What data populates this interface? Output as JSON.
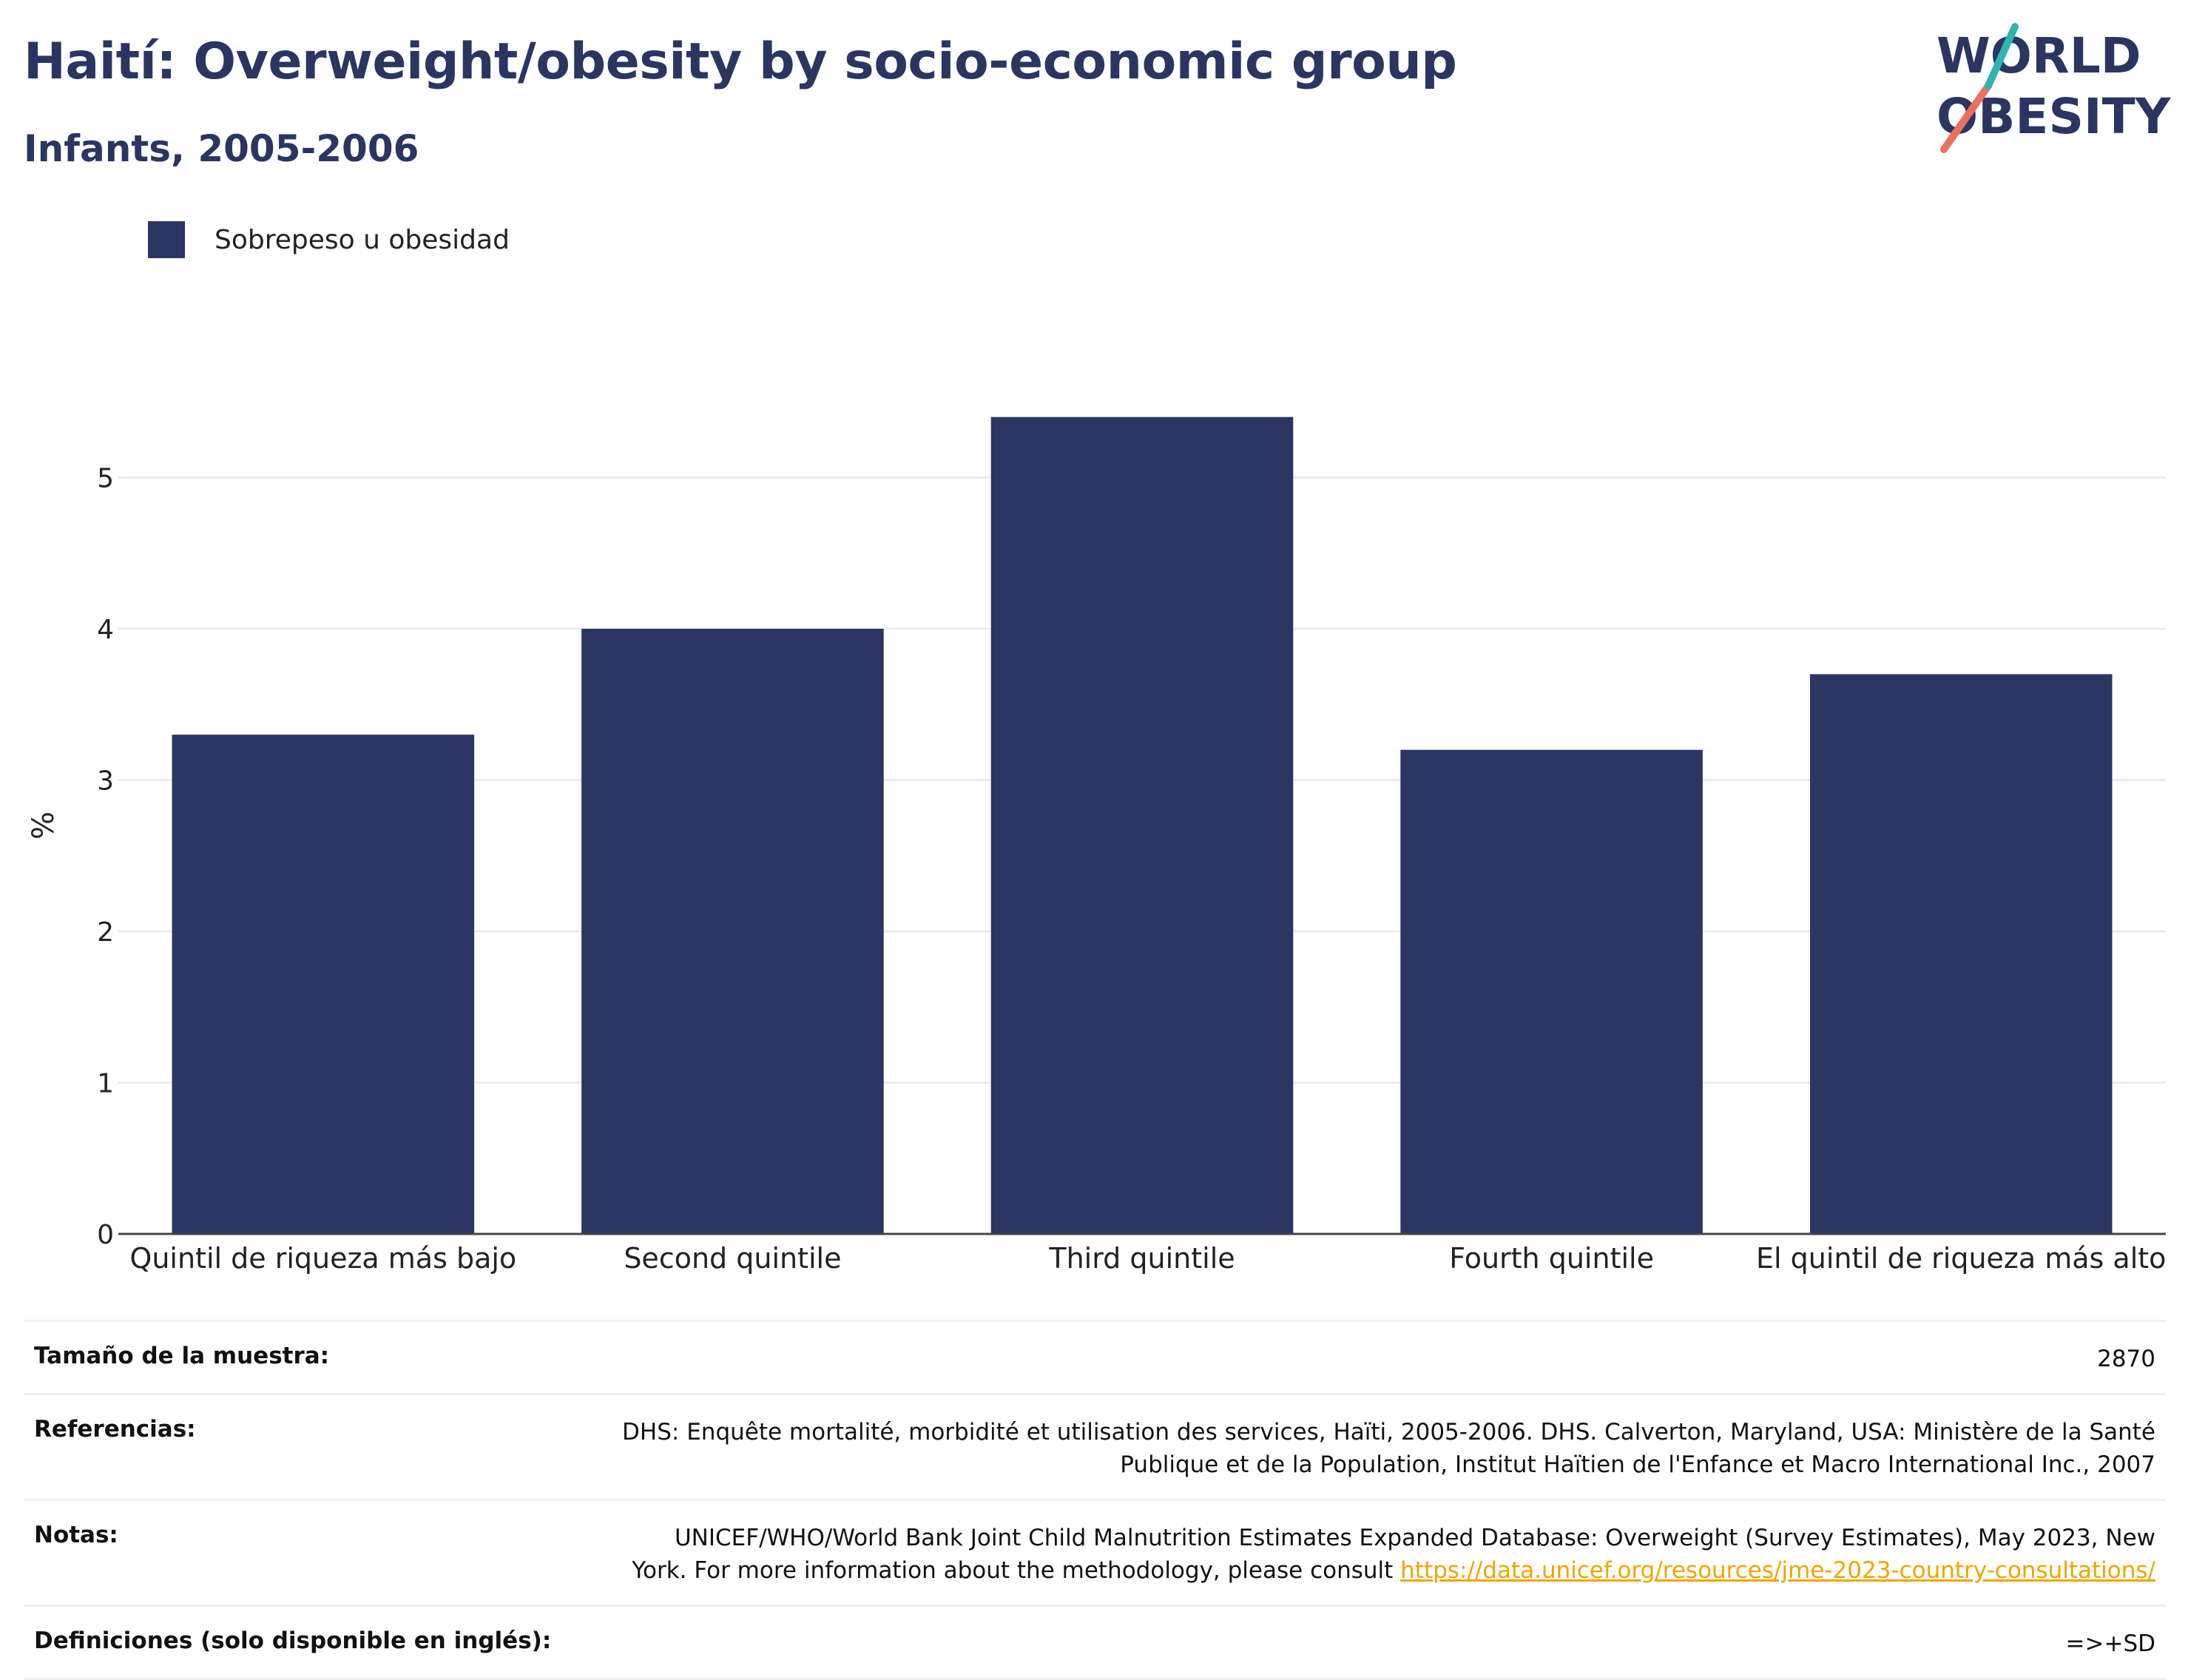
{
  "header": {
    "title": "Haití: Overweight/obesity by socio-economic group",
    "subtitle": "Infants, 2005-2006"
  },
  "logo": {
    "line1": "WORLD",
    "line2": "OBESITY"
  },
  "legend": {
    "label": "Sobrepeso u obesidad",
    "color": "#2b3663"
  },
  "chart_data": {
    "type": "bar",
    "categories": [
      "Quintil de riqueza más bajo",
      "Second quintile",
      "Third quintile",
      "Fourth quintile",
      "El quintil de riqueza más alto"
    ],
    "series": [
      {
        "name": "Sobrepeso u obesidad",
        "values": [
          3.3,
          4.0,
          5.4,
          3.2,
          3.7
        ],
        "color": "#2b3663"
      }
    ],
    "ylabel": "%",
    "ylim": [
      0,
      5.8
    ],
    "yticks": [
      0,
      1,
      2,
      3,
      4,
      5
    ],
    "grid": true,
    "legend_position": "top-left"
  },
  "info": {
    "sample_size_label": "Tamaño de la muestra:",
    "sample_size_value": "2870",
    "references_label": "Referencias:",
    "references_value_1": "DHS: Enquête mortalité, morbidité et utilisation des services, Haïti, 2005-2006. DHS. Calverton, Maryland, USA: Ministère de la Santé",
    "references_value_2": "Publique et de la Population, Institut Haïtien de l'Enfance et Macro International Inc., 2007",
    "notes_label": "Notas:",
    "notes_value_1": "UNICEF/WHO/World Bank Joint Child Malnutrition Estimates Expanded Database: Overweight (Survey Estimates), May 2023, New",
    "notes_value_2": "York. For more information about the methodology, please consult ",
    "notes_link": "https://data.unicef.org/resources/jme-2023-country-consultations/",
    "definitions_label": "Definiciones (solo disponible en inglés):",
    "definitions_value": "=>+SD"
  }
}
